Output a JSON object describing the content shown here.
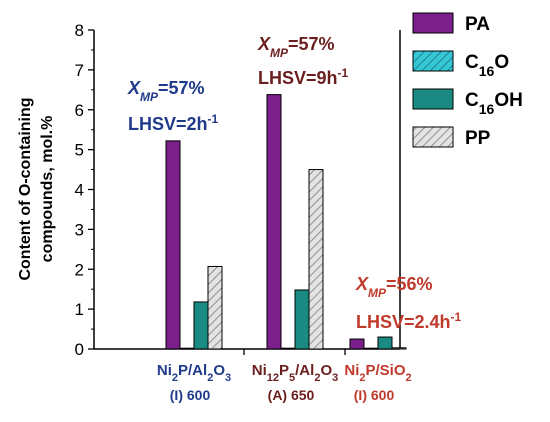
{
  "chart_data": {
    "type": "bar",
    "ylabel_lines": [
      "Content of O-containing",
      "compounds, mol.%"
    ],
    "ylim": [
      0,
      8
    ],
    "yticks": [
      0,
      1,
      2,
      3,
      4,
      5,
      6,
      7,
      8
    ],
    "grid": false,
    "legend_position": "top-right",
    "categories": [
      {
        "label_parts": [
          {
            "t": "Ni"
          },
          {
            "t": "2",
            "sub": true
          },
          {
            "t": "P/Al"
          },
          {
            "t": "2",
            "sub": true
          },
          {
            "t": "O"
          },
          {
            "t": "3",
            "sub": true
          }
        ],
        "sublabel": "(I) 600",
        "color": "#1f3a8a"
      },
      {
        "label_parts": [
          {
            "t": "Ni"
          },
          {
            "t": "12",
            "sub": true
          },
          {
            "t": "P"
          },
          {
            "t": "5",
            "sub": true
          },
          {
            "t": "/Al"
          },
          {
            "t": "2",
            "sub": true
          },
          {
            "t": "O"
          },
          {
            "t": "3",
            "sub": true
          }
        ],
        "sublabel": "(A) 650",
        "color": "#6b1e1e"
      },
      {
        "label_parts": [
          {
            "t": "Ni"
          },
          {
            "t": "2",
            "sub": true
          },
          {
            "t": "P/SiO"
          },
          {
            "t": "2",
            "sub": true
          }
        ],
        "sublabel": "(I) 600",
        "color": "#c0392b"
      }
    ],
    "series": [
      {
        "name": "PA",
        "values": [
          5.22,
          6.38,
          0.25
        ],
        "color": "#7b1f8a",
        "pattern": "solid",
        "legend_parts": [
          {
            "t": "PA"
          }
        ]
      },
      {
        "name": "C16O",
        "values": [
          0.02,
          0.02,
          0.02
        ],
        "color": "#35c7d4",
        "pattern": "hatch",
        "legend_parts": [
          {
            "t": "C"
          },
          {
            "t": "16",
            "sub": true
          },
          {
            "t": "O"
          }
        ]
      },
      {
        "name": "C16OH",
        "values": [
          1.18,
          1.48,
          0.3
        ],
        "color": "#1a8a83",
        "pattern": "solid",
        "legend_parts": [
          {
            "t": "C"
          },
          {
            "t": "16",
            "sub": true
          },
          {
            "t": "OH"
          }
        ]
      },
      {
        "name": "PP",
        "values": [
          2.07,
          4.5,
          0.03
        ],
        "color": "#d6d6d6",
        "pattern": "hatch-gray",
        "legend_parts": [
          {
            "t": "PP"
          }
        ]
      }
    ],
    "annotations": [
      {
        "group": 0,
        "color": "#1f3a8a",
        "line1": {
          "x": "X",
          "sub": "MP",
          "rest": "=57%"
        },
        "line2": {
          "text": "LHSV=2h",
          "sup": "-1"
        }
      },
      {
        "group": 1,
        "color": "#6b1e1e",
        "line1": {
          "x": "X",
          "sub": "MP",
          "rest": "=57%"
        },
        "line2": {
          "text": "LHSV=9h",
          "sup": "-1"
        }
      },
      {
        "group": 2,
        "color": "#c0392b",
        "line1": {
          "x": "X",
          "sub": "MP",
          "rest": "=56%"
        },
        "line2": {
          "text": "LHSV=2.4h",
          "sup": "-1"
        }
      }
    ]
  }
}
